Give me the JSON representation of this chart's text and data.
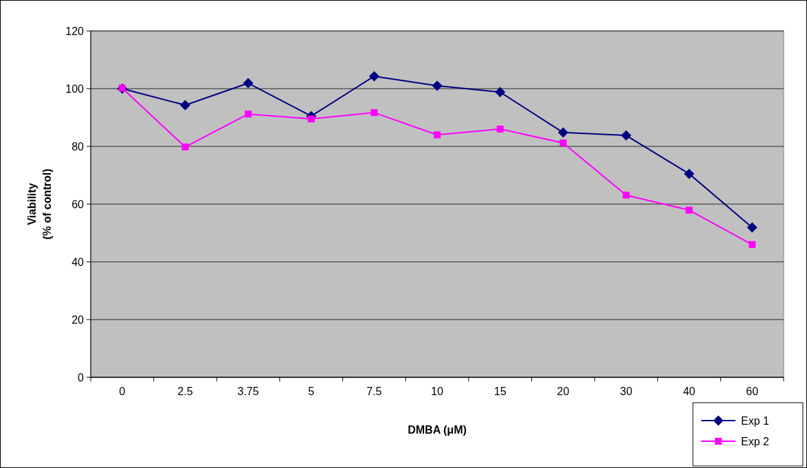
{
  "chart_data": {
    "type": "line",
    "xlabel": "DMBA (μM)",
    "ylabel": "Viability\n(% of control)",
    "categories": [
      "0",
      "2.5",
      "3.75",
      "5",
      "7.5",
      "10",
      "15",
      "20",
      "30",
      "40",
      "60"
    ],
    "series": [
      {
        "name": "Exp 1",
        "color": "#000080",
        "marker": "diamond",
        "values": [
          100,
          94.3,
          101.9,
          90.5,
          104.3,
          101,
          98.8,
          84.8,
          83.8,
          70.5,
          51.9
        ]
      },
      {
        "name": "Exp 2",
        "color": "#ff00ff",
        "marker": "square",
        "values": [
          100.2,
          79.8,
          91.2,
          89.5,
          91.7,
          84,
          86,
          81.2,
          63.1,
          57.9,
          46
        ]
      }
    ],
    "ylim": [
      0,
      120
    ],
    "yticks": [
      0,
      20,
      40,
      60,
      80,
      100,
      120
    ],
    "grid": "y",
    "legend": "bottom right",
    "line_style": "solid"
  }
}
